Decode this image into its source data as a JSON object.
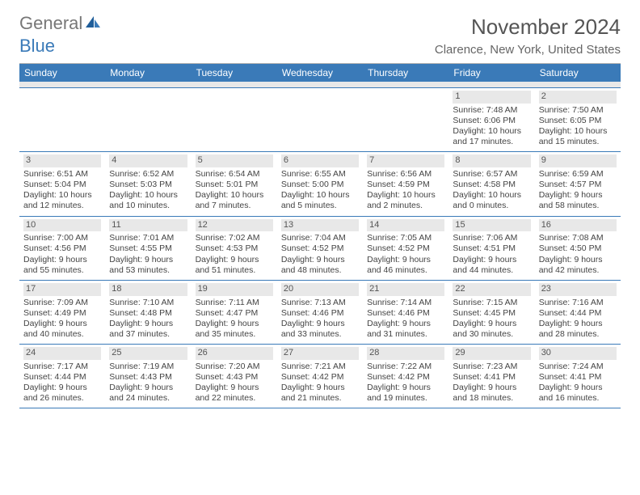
{
  "logo": {
    "text1": "General",
    "text2": "Blue"
  },
  "title": "November 2024",
  "location": "Clarence, New York, United States",
  "theme": {
    "header_bg": "#3a7ab8",
    "header_text": "#ffffff",
    "daynum_bg": "#e8e8e8",
    "row_border": "#3a7ab8",
    "text_color": "#444444",
    "logo_color": "#3a7ab8",
    "background": "#ffffff"
  },
  "columns": [
    "Sunday",
    "Monday",
    "Tuesday",
    "Wednesday",
    "Thursday",
    "Friday",
    "Saturday"
  ],
  "weeks": [
    [
      {
        "n": "",
        "sr": "",
        "ss": "",
        "dl": ""
      },
      {
        "n": "",
        "sr": "",
        "ss": "",
        "dl": ""
      },
      {
        "n": "",
        "sr": "",
        "ss": "",
        "dl": ""
      },
      {
        "n": "",
        "sr": "",
        "ss": "",
        "dl": ""
      },
      {
        "n": "",
        "sr": "",
        "ss": "",
        "dl": ""
      },
      {
        "n": "1",
        "sr": "Sunrise: 7:48 AM",
        "ss": "Sunset: 6:06 PM",
        "dl": "Daylight: 10 hours and 17 minutes."
      },
      {
        "n": "2",
        "sr": "Sunrise: 7:50 AM",
        "ss": "Sunset: 6:05 PM",
        "dl": "Daylight: 10 hours and 15 minutes."
      }
    ],
    [
      {
        "n": "3",
        "sr": "Sunrise: 6:51 AM",
        "ss": "Sunset: 5:04 PM",
        "dl": "Daylight: 10 hours and 12 minutes."
      },
      {
        "n": "4",
        "sr": "Sunrise: 6:52 AM",
        "ss": "Sunset: 5:03 PM",
        "dl": "Daylight: 10 hours and 10 minutes."
      },
      {
        "n": "5",
        "sr": "Sunrise: 6:54 AM",
        "ss": "Sunset: 5:01 PM",
        "dl": "Daylight: 10 hours and 7 minutes."
      },
      {
        "n": "6",
        "sr": "Sunrise: 6:55 AM",
        "ss": "Sunset: 5:00 PM",
        "dl": "Daylight: 10 hours and 5 minutes."
      },
      {
        "n": "7",
        "sr": "Sunrise: 6:56 AM",
        "ss": "Sunset: 4:59 PM",
        "dl": "Daylight: 10 hours and 2 minutes."
      },
      {
        "n": "8",
        "sr": "Sunrise: 6:57 AM",
        "ss": "Sunset: 4:58 PM",
        "dl": "Daylight: 10 hours and 0 minutes."
      },
      {
        "n": "9",
        "sr": "Sunrise: 6:59 AM",
        "ss": "Sunset: 4:57 PM",
        "dl": "Daylight: 9 hours and 58 minutes."
      }
    ],
    [
      {
        "n": "10",
        "sr": "Sunrise: 7:00 AM",
        "ss": "Sunset: 4:56 PM",
        "dl": "Daylight: 9 hours and 55 minutes."
      },
      {
        "n": "11",
        "sr": "Sunrise: 7:01 AM",
        "ss": "Sunset: 4:55 PM",
        "dl": "Daylight: 9 hours and 53 minutes."
      },
      {
        "n": "12",
        "sr": "Sunrise: 7:02 AM",
        "ss": "Sunset: 4:53 PM",
        "dl": "Daylight: 9 hours and 51 minutes."
      },
      {
        "n": "13",
        "sr": "Sunrise: 7:04 AM",
        "ss": "Sunset: 4:52 PM",
        "dl": "Daylight: 9 hours and 48 minutes."
      },
      {
        "n": "14",
        "sr": "Sunrise: 7:05 AM",
        "ss": "Sunset: 4:52 PM",
        "dl": "Daylight: 9 hours and 46 minutes."
      },
      {
        "n": "15",
        "sr": "Sunrise: 7:06 AM",
        "ss": "Sunset: 4:51 PM",
        "dl": "Daylight: 9 hours and 44 minutes."
      },
      {
        "n": "16",
        "sr": "Sunrise: 7:08 AM",
        "ss": "Sunset: 4:50 PM",
        "dl": "Daylight: 9 hours and 42 minutes."
      }
    ],
    [
      {
        "n": "17",
        "sr": "Sunrise: 7:09 AM",
        "ss": "Sunset: 4:49 PM",
        "dl": "Daylight: 9 hours and 40 minutes."
      },
      {
        "n": "18",
        "sr": "Sunrise: 7:10 AM",
        "ss": "Sunset: 4:48 PM",
        "dl": "Daylight: 9 hours and 37 minutes."
      },
      {
        "n": "19",
        "sr": "Sunrise: 7:11 AM",
        "ss": "Sunset: 4:47 PM",
        "dl": "Daylight: 9 hours and 35 minutes."
      },
      {
        "n": "20",
        "sr": "Sunrise: 7:13 AM",
        "ss": "Sunset: 4:46 PM",
        "dl": "Daylight: 9 hours and 33 minutes."
      },
      {
        "n": "21",
        "sr": "Sunrise: 7:14 AM",
        "ss": "Sunset: 4:46 PM",
        "dl": "Daylight: 9 hours and 31 minutes."
      },
      {
        "n": "22",
        "sr": "Sunrise: 7:15 AM",
        "ss": "Sunset: 4:45 PM",
        "dl": "Daylight: 9 hours and 30 minutes."
      },
      {
        "n": "23",
        "sr": "Sunrise: 7:16 AM",
        "ss": "Sunset: 4:44 PM",
        "dl": "Daylight: 9 hours and 28 minutes."
      }
    ],
    [
      {
        "n": "24",
        "sr": "Sunrise: 7:17 AM",
        "ss": "Sunset: 4:44 PM",
        "dl": "Daylight: 9 hours and 26 minutes."
      },
      {
        "n": "25",
        "sr": "Sunrise: 7:19 AM",
        "ss": "Sunset: 4:43 PM",
        "dl": "Daylight: 9 hours and 24 minutes."
      },
      {
        "n": "26",
        "sr": "Sunrise: 7:20 AM",
        "ss": "Sunset: 4:43 PM",
        "dl": "Daylight: 9 hours and 22 minutes."
      },
      {
        "n": "27",
        "sr": "Sunrise: 7:21 AM",
        "ss": "Sunset: 4:42 PM",
        "dl": "Daylight: 9 hours and 21 minutes."
      },
      {
        "n": "28",
        "sr": "Sunrise: 7:22 AM",
        "ss": "Sunset: 4:42 PM",
        "dl": "Daylight: 9 hours and 19 minutes."
      },
      {
        "n": "29",
        "sr": "Sunrise: 7:23 AM",
        "ss": "Sunset: 4:41 PM",
        "dl": "Daylight: 9 hours and 18 minutes."
      },
      {
        "n": "30",
        "sr": "Sunrise: 7:24 AM",
        "ss": "Sunset: 4:41 PM",
        "dl": "Daylight: 9 hours and 16 minutes."
      }
    ]
  ]
}
